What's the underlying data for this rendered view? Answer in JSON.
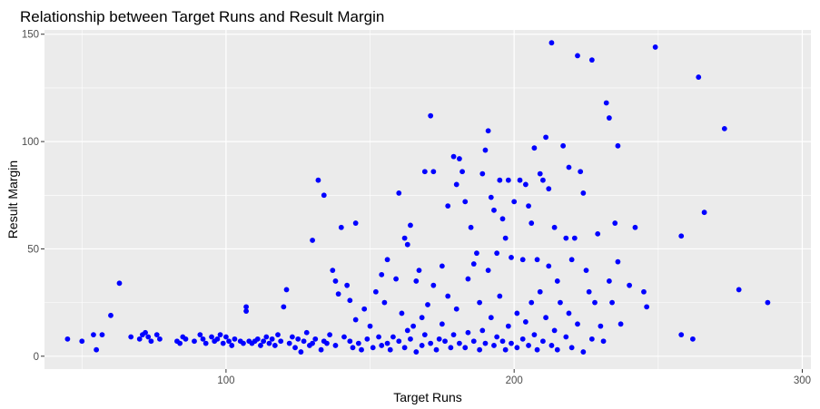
{
  "chart_data": {
    "type": "scatter",
    "title": "Relationship between Target Runs and Result Margin",
    "xlabel": "Target Runs",
    "ylabel": "Result Margin",
    "xlim": [
      37,
      303
    ],
    "ylim": [
      -6,
      152
    ],
    "xticks": [
      100,
      200,
      300
    ],
    "yticks": [
      0,
      50,
      100,
      150
    ],
    "grid": true,
    "point_color": "#0000ff",
    "panel_color": "#ebebeb",
    "points": [
      [
        45,
        8
      ],
      [
        50,
        7
      ],
      [
        54,
        10
      ],
      [
        55,
        3
      ],
      [
        57,
        10
      ],
      [
        60,
        19
      ],
      [
        63,
        34
      ],
      [
        67,
        9
      ],
      [
        70,
        8
      ],
      [
        71,
        10
      ],
      [
        72,
        11
      ],
      [
        73,
        9
      ],
      [
        74,
        7
      ],
      [
        76,
        10
      ],
      [
        77,
        8
      ],
      [
        83,
        7
      ],
      [
        84,
        6
      ],
      [
        85,
        9
      ],
      [
        86,
        8
      ],
      [
        89,
        7
      ],
      [
        91,
        10
      ],
      [
        92,
        8
      ],
      [
        93,
        6
      ],
      [
        95,
        9
      ],
      [
        96,
        7
      ],
      [
        97,
        8
      ],
      [
        98,
        10
      ],
      [
        99,
        6
      ],
      [
        100,
        9
      ],
      [
        101,
        7
      ],
      [
        102,
        5
      ],
      [
        103,
        8
      ],
      [
        105,
        7
      ],
      [
        106,
        6
      ],
      [
        107,
        23
      ],
      [
        107,
        21
      ],
      [
        108,
        7
      ],
      [
        109,
        6
      ],
      [
        110,
        7
      ],
      [
        111,
        8
      ],
      [
        112,
        5
      ],
      [
        113,
        7
      ],
      [
        114,
        9
      ],
      [
        115,
        6
      ],
      [
        116,
        8
      ],
      [
        117,
        5
      ],
      [
        118,
        10
      ],
      [
        119,
        7
      ],
      [
        120,
        23
      ],
      [
        121,
        31
      ],
      [
        122,
        6
      ],
      [
        123,
        9
      ],
      [
        124,
        4
      ],
      [
        125,
        8
      ],
      [
        126,
        2
      ],
      [
        127,
        7
      ],
      [
        128,
        11
      ],
      [
        129,
        5
      ],
      [
        130,
        54
      ],
      [
        130,
        6
      ],
      [
        131,
        8
      ],
      [
        132,
        82
      ],
      [
        133,
        3
      ],
      [
        134,
        75
      ],
      [
        134,
        7
      ],
      [
        135,
        6
      ],
      [
        136,
        10
      ],
      [
        137,
        40
      ],
      [
        138,
        35
      ],
      [
        138,
        5
      ],
      [
        139,
        29
      ],
      [
        140,
        60
      ],
      [
        141,
        9
      ],
      [
        142,
        33
      ],
      [
        143,
        26
      ],
      [
        143,
        7
      ],
      [
        144,
        4
      ],
      [
        145,
        62
      ],
      [
        145,
        17
      ],
      [
        146,
        6
      ],
      [
        147,
        3
      ],
      [
        148,
        22
      ],
      [
        149,
        8
      ],
      [
        150,
        14
      ],
      [
        151,
        4
      ],
      [
        152,
        30
      ],
      [
        153,
        9
      ],
      [
        154,
        38
      ],
      [
        154,
        5
      ],
      [
        155,
        25
      ],
      [
        156,
        45
      ],
      [
        156,
        6
      ],
      [
        157,
        3
      ],
      [
        158,
        9
      ],
      [
        159,
        36
      ],
      [
        160,
        76
      ],
      [
        160,
        7
      ],
      [
        161,
        20
      ],
      [
        162,
        55
      ],
      [
        162,
        4
      ],
      [
        163,
        52
      ],
      [
        163,
        12
      ],
      [
        164,
        61
      ],
      [
        164,
        8
      ],
      [
        165,
        14
      ],
      [
        166,
        35
      ],
      [
        166,
        2
      ],
      [
        167,
        40
      ],
      [
        168,
        18
      ],
      [
        168,
        5
      ],
      [
        169,
        86
      ],
      [
        169,
        10
      ],
      [
        170,
        24
      ],
      [
        171,
        112
      ],
      [
        171,
        6
      ],
      [
        172,
        86
      ],
      [
        172,
        33
      ],
      [
        173,
        3
      ],
      [
        174,
        8
      ],
      [
        175,
        42
      ],
      [
        175,
        15
      ],
      [
        176,
        7
      ],
      [
        177,
        70
      ],
      [
        177,
        28
      ],
      [
        178,
        4
      ],
      [
        179,
        93
      ],
      [
        179,
        10
      ],
      [
        180,
        80
      ],
      [
        180,
        22
      ],
      [
        181,
        92
      ],
      [
        181,
        6
      ],
      [
        182,
        86
      ],
      [
        183,
        72
      ],
      [
        183,
        4
      ],
      [
        184,
        36
      ],
      [
        184,
        11
      ],
      [
        185,
        60
      ],
      [
        186,
        43
      ],
      [
        186,
        7
      ],
      [
        187,
        48
      ],
      [
        188,
        25
      ],
      [
        188,
        3
      ],
      [
        189,
        85
      ],
      [
        189,
        12
      ],
      [
        190,
        96
      ],
      [
        190,
        6
      ],
      [
        191,
        105
      ],
      [
        191,
        40
      ],
      [
        192,
        74
      ],
      [
        192,
        18
      ],
      [
        193,
        68
      ],
      [
        193,
        5
      ],
      [
        194,
        48
      ],
      [
        194,
        9
      ],
      [
        195,
        82
      ],
      [
        195,
        28
      ],
      [
        196,
        64
      ],
      [
        196,
        7
      ],
      [
        197,
        55
      ],
      [
        197,
        3
      ],
      [
        198,
        82
      ],
      [
        198,
        14
      ],
      [
        199,
        46
      ],
      [
        199,
        6
      ],
      [
        200,
        72
      ],
      [
        201,
        20
      ],
      [
        201,
        4
      ],
      [
        202,
        82
      ],
      [
        203,
        45
      ],
      [
        203,
        8
      ],
      [
        204,
        80
      ],
      [
        204,
        16
      ],
      [
        205,
        70
      ],
      [
        205,
        5
      ],
      [
        206,
        62
      ],
      [
        206,
        25
      ],
      [
        207,
        97
      ],
      [
        207,
        10
      ],
      [
        208,
        45
      ],
      [
        208,
        3
      ],
      [
        209,
        85
      ],
      [
        209,
        30
      ],
      [
        210,
        82
      ],
      [
        210,
        7
      ],
      [
        211,
        102
      ],
      [
        211,
        18
      ],
      [
        212,
        78
      ],
      [
        212,
        42
      ],
      [
        213,
        146
      ],
      [
        213,
        5
      ],
      [
        214,
        60
      ],
      [
        214,
        12
      ],
      [
        215,
        35
      ],
      [
        215,
        3
      ],
      [
        216,
        25
      ],
      [
        217,
        98
      ],
      [
        218,
        55
      ],
      [
        218,
        9
      ],
      [
        219,
        88
      ],
      [
        219,
        20
      ],
      [
        220,
        45
      ],
      [
        220,
        4
      ],
      [
        221,
        55
      ],
      [
        222,
        140
      ],
      [
        222,
        15
      ],
      [
        223,
        86
      ],
      [
        224,
        76
      ],
      [
        224,
        2
      ],
      [
        225,
        40
      ],
      [
        226,
        30
      ],
      [
        227,
        138
      ],
      [
        227,
        8
      ],
      [
        228,
        25
      ],
      [
        229,
        57
      ],
      [
        230,
        14
      ],
      [
        231,
        7
      ],
      [
        232,
        118
      ],
      [
        233,
        111
      ],
      [
        233,
        35
      ],
      [
        234,
        25
      ],
      [
        235,
        62
      ],
      [
        236,
        98
      ],
      [
        236,
        44
      ],
      [
        237,
        15
      ],
      [
        240,
        33
      ],
      [
        242,
        60
      ],
      [
        245,
        30
      ],
      [
        246,
        23
      ],
      [
        249,
        144
      ],
      [
        258,
        56
      ],
      [
        258,
        10
      ],
      [
        262,
        8
      ],
      [
        264,
        130
      ],
      [
        266,
        67
      ],
      [
        273,
        106
      ],
      [
        278,
        31
      ],
      [
        288,
        25
      ]
    ]
  }
}
